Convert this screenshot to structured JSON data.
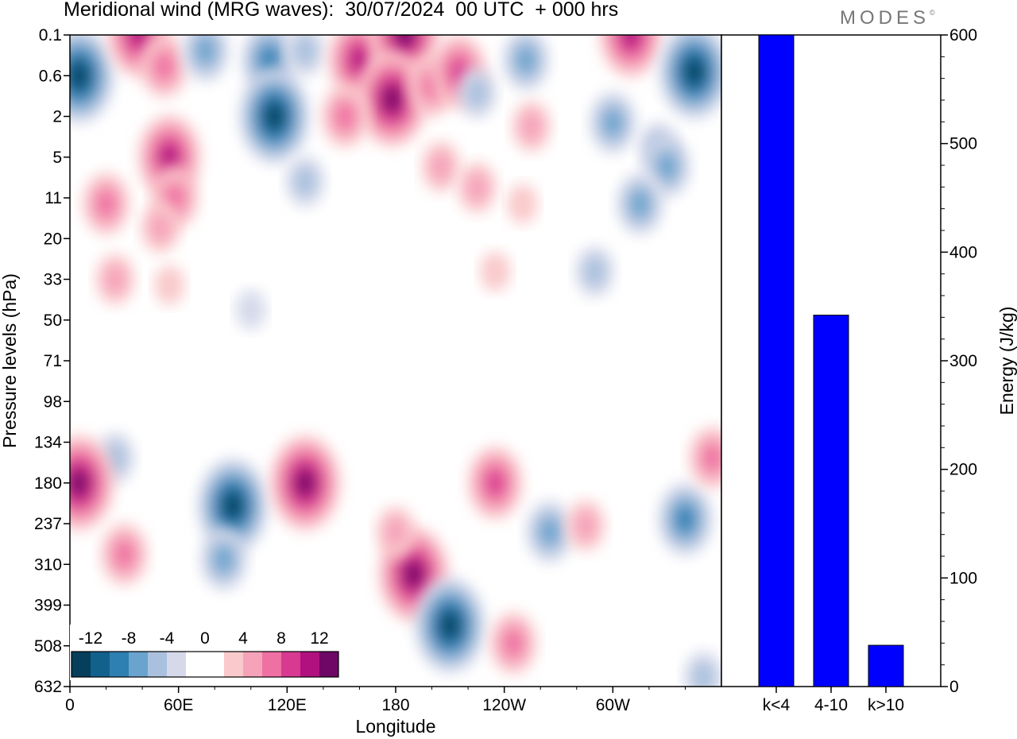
{
  "title": "Meridional wind (MRG waves):  30/07/2024  00 UTC  + 000 hrs",
  "logo": "MODES",
  "logo_mark": "©",
  "colors": {
    "negative": [
      "#063f5b",
      "#12618c",
      "#2e7fb2",
      "#6aa3cd",
      "#a9c1de",
      "#d6d9ea"
    ],
    "positive": [
      "#f9c9cb",
      "#f6a2b9",
      "#ef70a2",
      "#d83a92",
      "#b0117f",
      "#6e0765"
    ],
    "bar": "#0000ff"
  },
  "chart_data": [
    {
      "type": "heatmap",
      "title": "Meridional wind (MRG waves):  30/07/2024  00 UTC  + 000 hrs",
      "xlabel": "Longitude",
      "ylabel": "Pressure levels (hPa)",
      "x_tick_labels": [
        "0",
        "60E",
        "120E",
        "180",
        "120W",
        "60W"
      ],
      "y_tick_labels": [
        "0.1",
        "0.6",
        "2",
        "5",
        "11",
        "20",
        "33",
        "50",
        "71",
        "98",
        "134",
        "180",
        "237",
        "310",
        "399",
        "508",
        "632"
      ],
      "colorbar_labels": [
        "-12",
        "-8",
        "-4",
        "0",
        "4",
        "8",
        "12"
      ],
      "features": [
        {
          "lon": 5,
          "level": 0.6,
          "value": -14
        },
        {
          "lon": 38,
          "level": 0.1,
          "value": 10
        },
        {
          "lon": 52,
          "level": 0.4,
          "value": 6
        },
        {
          "lon": 55,
          "level": 5,
          "value": 9
        },
        {
          "lon": 20,
          "level": 12,
          "value": 5
        },
        {
          "lon": 75,
          "level": 0.2,
          "value": -6
        },
        {
          "lon": 58,
          "level": 11,
          "value": 5
        },
        {
          "lon": 50,
          "level": 17,
          "value": 3
        },
        {
          "lon": 110,
          "level": 0.3,
          "value": -7
        },
        {
          "lon": 130,
          "level": 0.2,
          "value": -4
        },
        {
          "lon": 113,
          "level": 2,
          "value": -14
        },
        {
          "lon": 160,
          "level": 0.3,
          "value": 9
        },
        {
          "lon": 185,
          "level": 0.1,
          "value": 12
        },
        {
          "lon": 178,
          "level": 1.2,
          "value": 12
        },
        {
          "lon": 152,
          "level": 2,
          "value": 6
        },
        {
          "lon": 200,
          "level": 0.8,
          "value": 6
        },
        {
          "lon": 215,
          "level": 0.5,
          "value": 7
        },
        {
          "lon": 252,
          "level": 0.3,
          "value": -6
        },
        {
          "lon": 225,
          "level": 1,
          "value": -3
        },
        {
          "lon": 310,
          "level": 0.1,
          "value": 10
        },
        {
          "lon": 345,
          "level": 0.5,
          "value": -14
        },
        {
          "lon": 300,
          "level": 2.3,
          "value": -6
        },
        {
          "lon": 325,
          "level": 4,
          "value": -4
        },
        {
          "lon": 330,
          "level": 6,
          "value": -6
        },
        {
          "lon": 315,
          "level": 12,
          "value": -5
        },
        {
          "lon": 255,
          "level": 2.5,
          "value": 4
        },
        {
          "lon": 205,
          "level": 6,
          "value": 3
        },
        {
          "lon": 225,
          "level": 9,
          "value": 3
        },
        {
          "lon": 250,
          "level": 12,
          "value": 2
        },
        {
          "lon": 235,
          "level": 30,
          "value": 2
        },
        {
          "lon": 290,
          "level": 30,
          "value": -3
        },
        {
          "lon": 25,
          "level": 33,
          "value": 3
        },
        {
          "lon": 55,
          "level": 35,
          "value": 2
        },
        {
          "lon": 130,
          "level": 8,
          "value": -3
        },
        {
          "lon": 100,
          "level": 45,
          "value": -2
        },
        {
          "lon": 25,
          "level": 150,
          "value": -3
        },
        {
          "lon": 5,
          "level": 180,
          "value": 11
        },
        {
          "lon": 90,
          "level": 210,
          "value": -13
        },
        {
          "lon": 85,
          "level": 300,
          "value": -5
        },
        {
          "lon": 130,
          "level": 180,
          "value": 13
        },
        {
          "lon": 30,
          "level": 290,
          "value": 5
        },
        {
          "lon": 190,
          "level": 330,
          "value": 12
        },
        {
          "lon": 180,
          "level": 250,
          "value": 3
        },
        {
          "lon": 210,
          "level": 450,
          "value": -12
        },
        {
          "lon": 235,
          "level": 180,
          "value": 8
        },
        {
          "lon": 245,
          "level": 500,
          "value": 5
        },
        {
          "lon": 265,
          "level": 250,
          "value": -5
        },
        {
          "lon": 285,
          "level": 240,
          "value": 4
        },
        {
          "lon": 340,
          "level": 230,
          "value": -7
        },
        {
          "lon": 350,
          "level": 600,
          "value": -3
        },
        {
          "lon": 355,
          "level": 150,
          "value": 5
        }
      ]
    },
    {
      "type": "bar",
      "categories": [
        "k<4",
        "4-10",
        "k>10"
      ],
      "values": [
        600,
        342,
        38
      ],
      "ylabel": "Energy (J/kg)",
      "ylim": [
        0,
        600
      ],
      "yticks": [
        0,
        100,
        200,
        300,
        400,
        500,
        600
      ]
    }
  ]
}
